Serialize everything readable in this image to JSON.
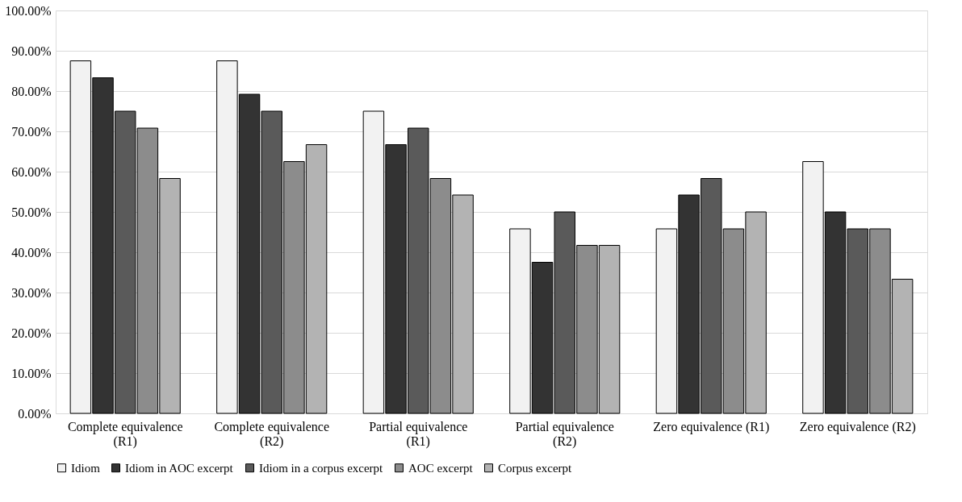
{
  "chart_data": {
    "type": "bar",
    "categories": [
      "Complete equivalence (R1)",
      "Complete equivalence (R2)",
      "Partial equivalence (R1)",
      "Partial equivalence (R2)",
      "Zero equivalence (R1)",
      "Zero equivalence (R2)"
    ],
    "series": [
      {
        "name": "Idiom",
        "color": "#f2f2f2",
        "values": [
          87.5,
          87.5,
          75.0,
          45.8,
          45.8,
          62.5
        ]
      },
      {
        "name": "Idiom in AOC excerpt",
        "color": "#333333",
        "values": [
          83.3,
          79.2,
          66.7,
          37.5,
          54.2,
          50.0
        ]
      },
      {
        "name": "Idiom in a corpus excerpt",
        "color": "#5a5a5a",
        "values": [
          75.0,
          75.0,
          70.8,
          50.0,
          58.3,
          45.8
        ]
      },
      {
        "name": "AOC excerpt",
        "color": "#8c8c8c",
        "values": [
          70.8,
          62.5,
          58.3,
          41.7,
          45.8,
          45.8
        ]
      },
      {
        "name": "Corpus excerpt",
        "color": "#b3b3b3",
        "values": [
          58.3,
          66.7,
          54.2,
          41.7,
          50.0,
          33.3
        ]
      }
    ],
    "ylim": [
      0,
      100
    ],
    "yticks": [
      {
        "value": 0,
        "label": "0.00%"
      },
      {
        "value": 10,
        "label": "10.00%"
      },
      {
        "value": 20,
        "label": "20.00%"
      },
      {
        "value": 30,
        "label": "30.00%"
      },
      {
        "value": 40,
        "label": "40.00%"
      },
      {
        "value": 50,
        "label": "50.00%"
      },
      {
        "value": 60,
        "label": "60.00%"
      },
      {
        "value": 70,
        "label": "70.00%"
      },
      {
        "value": 80,
        "label": "80.00%"
      },
      {
        "value": 90,
        "label": "90.00%"
      },
      {
        "value": 100,
        "label": "100.00%"
      }
    ],
    "grid": "y",
    "legend": "bottom"
  }
}
